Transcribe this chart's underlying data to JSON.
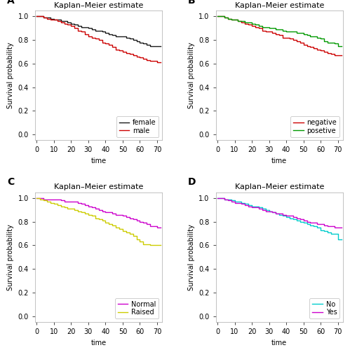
{
  "title": "Kaplan–Meier estimate",
  "xlabel": "time",
  "ylabel": "Survival probability",
  "xlim": [
    -1,
    73
  ],
  "ylim": [
    -0.05,
    1.05
  ],
  "xticks": [
    0,
    10,
    20,
    30,
    40,
    50,
    60,
    70
  ],
  "yticks": [
    0.0,
    0.2,
    0.4,
    0.6,
    0.8,
    1.0
  ],
  "panels": [
    {
      "label": "A",
      "series": [
        {
          "name": "female",
          "color": "#1a1a1a",
          "times": [
            0,
            2,
            4,
            6,
            8,
            10,
            12,
            14,
            16,
            18,
            20,
            22,
            24,
            26,
            28,
            30,
            32,
            34,
            36,
            38,
            40,
            42,
            44,
            46,
            48,
            50,
            52,
            54,
            56,
            58,
            60,
            62,
            64,
            66,
            68,
            70,
            72
          ],
          "survival": [
            1.0,
            1.0,
            0.99,
            0.99,
            0.98,
            0.97,
            0.97,
            0.96,
            0.96,
            0.95,
            0.94,
            0.93,
            0.92,
            0.91,
            0.91,
            0.9,
            0.89,
            0.88,
            0.88,
            0.87,
            0.86,
            0.85,
            0.84,
            0.83,
            0.83,
            0.83,
            0.82,
            0.81,
            0.8,
            0.79,
            0.78,
            0.77,
            0.76,
            0.75,
            0.75,
            0.75,
            0.75
          ]
        },
        {
          "name": "male",
          "color": "#cc0000",
          "times": [
            0,
            2,
            4,
            6,
            8,
            10,
            12,
            14,
            16,
            18,
            20,
            22,
            24,
            26,
            28,
            30,
            32,
            34,
            36,
            38,
            40,
            42,
            44,
            46,
            48,
            50,
            52,
            54,
            56,
            58,
            60,
            62,
            64,
            66,
            68,
            70,
            72
          ],
          "survival": [
            1.0,
            1.0,
            0.99,
            0.98,
            0.97,
            0.97,
            0.96,
            0.95,
            0.94,
            0.93,
            0.92,
            0.9,
            0.88,
            0.87,
            0.85,
            0.83,
            0.82,
            0.81,
            0.8,
            0.78,
            0.77,
            0.76,
            0.74,
            0.72,
            0.71,
            0.7,
            0.69,
            0.68,
            0.67,
            0.66,
            0.65,
            0.64,
            0.63,
            0.62,
            0.62,
            0.61,
            0.61
          ]
        }
      ],
      "legend_loc": "lower right"
    },
    {
      "label": "B",
      "series": [
        {
          "name": "negative",
          "color": "#cc0000",
          "times": [
            0,
            2,
            4,
            6,
            8,
            10,
            12,
            14,
            16,
            18,
            20,
            22,
            24,
            26,
            28,
            30,
            32,
            34,
            36,
            38,
            40,
            42,
            44,
            46,
            48,
            50,
            52,
            54,
            56,
            58,
            60,
            62,
            64,
            66,
            68,
            70,
            72
          ],
          "survival": [
            1.0,
            1.0,
            0.99,
            0.98,
            0.97,
            0.97,
            0.96,
            0.95,
            0.94,
            0.93,
            0.92,
            0.91,
            0.9,
            0.88,
            0.87,
            0.87,
            0.86,
            0.85,
            0.84,
            0.82,
            0.82,
            0.81,
            0.8,
            0.79,
            0.78,
            0.76,
            0.75,
            0.74,
            0.73,
            0.72,
            0.71,
            0.7,
            0.69,
            0.68,
            0.67,
            0.67,
            0.67
          ]
        },
        {
          "name": "posetive",
          "color": "#009900",
          "times": [
            0,
            2,
            4,
            6,
            8,
            10,
            12,
            14,
            16,
            18,
            20,
            22,
            24,
            26,
            28,
            30,
            32,
            34,
            36,
            38,
            40,
            42,
            44,
            46,
            48,
            50,
            52,
            54,
            56,
            58,
            60,
            62,
            64,
            66,
            68,
            70,
            72
          ],
          "survival": [
            1.0,
            1.0,
            0.99,
            0.98,
            0.97,
            0.97,
            0.96,
            0.96,
            0.95,
            0.95,
            0.94,
            0.93,
            0.92,
            0.91,
            0.91,
            0.9,
            0.9,
            0.89,
            0.89,
            0.88,
            0.87,
            0.87,
            0.87,
            0.86,
            0.86,
            0.85,
            0.84,
            0.83,
            0.83,
            0.82,
            0.81,
            0.79,
            0.78,
            0.78,
            0.77,
            0.75,
            0.75
          ]
        }
      ],
      "legend_loc": "lower right"
    },
    {
      "label": "C",
      "series": [
        {
          "name": "Normal",
          "color": "#cc00cc",
          "times": [
            0,
            2,
            4,
            6,
            8,
            10,
            12,
            14,
            16,
            18,
            20,
            22,
            24,
            26,
            28,
            30,
            32,
            34,
            36,
            38,
            40,
            42,
            44,
            46,
            48,
            50,
            52,
            54,
            56,
            58,
            60,
            62,
            64,
            66,
            68,
            70,
            72
          ],
          "survival": [
            1.0,
            1.0,
            0.99,
            0.99,
            0.99,
            0.99,
            0.99,
            0.98,
            0.97,
            0.97,
            0.97,
            0.97,
            0.96,
            0.95,
            0.94,
            0.93,
            0.92,
            0.91,
            0.9,
            0.89,
            0.88,
            0.88,
            0.87,
            0.86,
            0.86,
            0.85,
            0.84,
            0.83,
            0.82,
            0.81,
            0.8,
            0.79,
            0.78,
            0.76,
            0.76,
            0.75,
            0.75
          ]
        },
        {
          "name": "Raised",
          "color": "#cccc00",
          "times": [
            0,
            2,
            4,
            6,
            8,
            10,
            12,
            14,
            16,
            18,
            20,
            22,
            24,
            26,
            28,
            30,
            32,
            34,
            36,
            38,
            40,
            42,
            44,
            46,
            48,
            50,
            52,
            54,
            56,
            58,
            60,
            62,
            64,
            66,
            68,
            70,
            72
          ],
          "survival": [
            1.0,
            0.99,
            0.98,
            0.97,
            0.96,
            0.95,
            0.94,
            0.93,
            0.92,
            0.91,
            0.91,
            0.9,
            0.89,
            0.88,
            0.87,
            0.86,
            0.85,
            0.83,
            0.82,
            0.81,
            0.79,
            0.78,
            0.77,
            0.75,
            0.74,
            0.72,
            0.71,
            0.7,
            0.68,
            0.65,
            0.63,
            0.61,
            0.61,
            0.6,
            0.6,
            0.6,
            0.6
          ]
        }
      ],
      "legend_loc": "lower right"
    },
    {
      "label": "D",
      "series": [
        {
          "name": "No",
          "color": "#00cccc",
          "times": [
            0,
            2,
            4,
            6,
            8,
            10,
            12,
            14,
            16,
            18,
            20,
            22,
            24,
            26,
            28,
            30,
            32,
            34,
            36,
            38,
            40,
            42,
            44,
            46,
            48,
            50,
            52,
            54,
            56,
            58,
            60,
            62,
            64,
            66,
            68,
            70,
            72
          ],
          "survival": [
            1.0,
            1.0,
            0.99,
            0.99,
            0.98,
            0.97,
            0.97,
            0.96,
            0.95,
            0.94,
            0.93,
            0.93,
            0.92,
            0.91,
            0.9,
            0.89,
            0.88,
            0.87,
            0.86,
            0.85,
            0.84,
            0.83,
            0.82,
            0.81,
            0.8,
            0.79,
            0.78,
            0.77,
            0.76,
            0.75,
            0.73,
            0.72,
            0.71,
            0.7,
            0.7,
            0.65,
            0.65
          ]
        },
        {
          "name": "Yes",
          "color": "#cc00cc",
          "times": [
            0,
            2,
            4,
            6,
            8,
            10,
            12,
            14,
            16,
            18,
            20,
            22,
            24,
            26,
            28,
            30,
            32,
            34,
            36,
            38,
            40,
            42,
            44,
            46,
            48,
            50,
            52,
            54,
            56,
            58,
            60,
            62,
            64,
            66,
            68,
            70,
            72
          ],
          "survival": [
            1.0,
            1.0,
            0.99,
            0.98,
            0.97,
            0.96,
            0.96,
            0.95,
            0.94,
            0.93,
            0.92,
            0.92,
            0.91,
            0.9,
            0.89,
            0.89,
            0.88,
            0.87,
            0.87,
            0.86,
            0.85,
            0.85,
            0.84,
            0.83,
            0.82,
            0.81,
            0.8,
            0.79,
            0.79,
            0.78,
            0.78,
            0.77,
            0.76,
            0.76,
            0.75,
            0.75,
            0.75
          ]
        }
      ],
      "legend_loc": "lower right"
    }
  ],
  "bg_color": "#ffffff",
  "linewidth": 1.0,
  "font_size": 7,
  "title_font_size": 8,
  "label_font_size": 10
}
